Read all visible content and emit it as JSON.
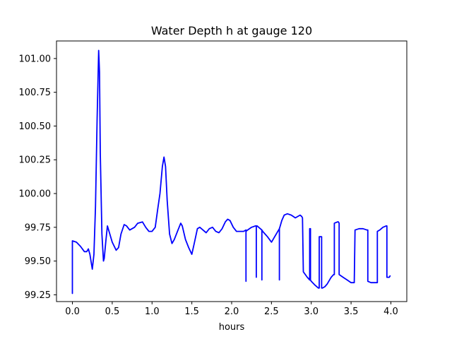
{
  "chart_data": {
    "type": "line",
    "title": "Water Depth h at gauge 120",
    "xlabel": "hours",
    "ylabel": "",
    "xlim": [
      -0.2,
      4.2
    ],
    "ylim": [
      99.2,
      101.13
    ],
    "xticks": [
      0.0,
      0.5,
      1.0,
      1.5,
      2.0,
      2.5,
      3.0,
      3.5,
      4.0
    ],
    "xtick_labels": [
      "0.0",
      "0.5",
      "1.0",
      "1.5",
      "2.0",
      "2.5",
      "3.0",
      "3.5",
      "4.0"
    ],
    "yticks": [
      99.25,
      99.5,
      99.75,
      100.0,
      100.25,
      100.5,
      100.75,
      101.0
    ],
    "ytick_labels": [
      "99.25",
      "99.50",
      "99.75",
      "100.00",
      "100.25",
      "100.50",
      "100.75",
      "101.00"
    ],
    "grid": false,
    "series": [
      {
        "color": "#0000ff",
        "x": [
          0.0,
          0.0,
          0.05,
          0.1,
          0.15,
          0.18,
          0.2,
          0.22,
          0.25,
          0.27,
          0.29,
          0.31,
          0.33,
          0.34,
          0.35,
          0.37,
          0.39,
          0.4,
          0.42,
          0.44,
          0.46,
          0.5,
          0.55,
          0.58,
          0.61,
          0.65,
          0.68,
          0.72,
          0.78,
          0.82,
          0.88,
          0.92,
          0.96,
          1.0,
          1.04,
          1.07,
          1.1,
          1.13,
          1.15,
          1.17,
          1.19,
          1.22,
          1.25,
          1.28,
          1.32,
          1.36,
          1.38,
          1.42,
          1.46,
          1.5,
          1.53,
          1.57,
          1.6,
          1.64,
          1.68,
          1.72,
          1.76,
          1.8,
          1.84,
          1.88,
          1.92,
          1.95,
          1.98,
          2.02,
          2.06,
          2.1,
          2.15,
          2.18,
          2.18,
          2.18,
          2.2,
          2.25,
          2.3,
          2.31,
          2.31,
          2.31,
          2.32,
          2.36,
          2.38,
          2.38,
          2.38,
          2.39,
          2.45,
          2.5,
          2.55,
          2.59,
          2.6,
          2.6,
          2.6,
          2.61,
          2.63,
          2.66,
          2.7,
          2.75,
          2.8,
          2.83,
          2.86,
          2.88,
          2.89,
          2.9,
          2.95,
          2.98,
          2.98,
          2.99,
          2.99,
          3.0,
          3.05,
          3.09,
          3.1,
          3.1,
          3.13,
          3.13,
          3.14,
          3.17,
          3.2,
          3.25,
          3.28,
          3.29,
          3.29,
          3.33,
          3.34,
          3.35,
          3.35,
          3.4,
          3.45,
          3.5,
          3.54,
          3.55,
          3.6,
          3.65,
          3.7,
          3.71,
          3.71,
          3.75,
          3.8,
          3.83,
          3.83,
          3.86,
          3.9,
          3.94,
          3.95,
          3.95,
          3.98,
          3.99
        ],
        "y": [
          99.26,
          99.65,
          99.64,
          99.61,
          99.57,
          99.57,
          99.59,
          99.55,
          99.44,
          99.55,
          99.9,
          100.55,
          101.06,
          100.9,
          100.3,
          99.7,
          99.5,
          99.52,
          99.65,
          99.76,
          99.72,
          99.64,
          99.58,
          99.6,
          99.7,
          99.77,
          99.76,
          99.73,
          99.75,
          99.78,
          99.79,
          99.75,
          99.72,
          99.72,
          99.75,
          99.88,
          100.0,
          100.2,
          100.27,
          100.2,
          99.95,
          99.7,
          99.63,
          99.66,
          99.72,
          99.78,
          99.76,
          99.66,
          99.6,
          99.55,
          99.63,
          99.74,
          99.75,
          99.73,
          99.71,
          99.74,
          99.75,
          99.72,
          99.71,
          99.74,
          99.79,
          99.81,
          99.8,
          99.75,
          99.72,
          99.72,
          99.72,
          99.73,
          99.35,
          99.72,
          99.73,
          99.75,
          99.76,
          99.76,
          99.38,
          99.76,
          99.76,
          99.74,
          99.73,
          99.36,
          99.73,
          99.72,
          99.68,
          99.64,
          99.69,
          99.73,
          99.74,
          99.36,
          99.74,
          99.76,
          99.8,
          99.84,
          99.85,
          99.84,
          99.82,
          99.83,
          99.84,
          99.83,
          99.82,
          99.42,
          99.38,
          99.36,
          99.74,
          99.74,
          99.36,
          99.35,
          99.32,
          99.3,
          99.3,
          99.68,
          99.68,
          99.3,
          99.3,
          99.31,
          99.33,
          99.38,
          99.4,
          99.4,
          99.78,
          99.79,
          99.79,
          99.78,
          99.4,
          99.38,
          99.36,
          99.34,
          99.34,
          99.73,
          99.74,
          99.74,
          99.73,
          99.73,
          99.35,
          99.34,
          99.34,
          99.34,
          99.72,
          99.73,
          99.75,
          99.76,
          99.76,
          99.38,
          99.38,
          99.39
        ]
      }
    ]
  }
}
